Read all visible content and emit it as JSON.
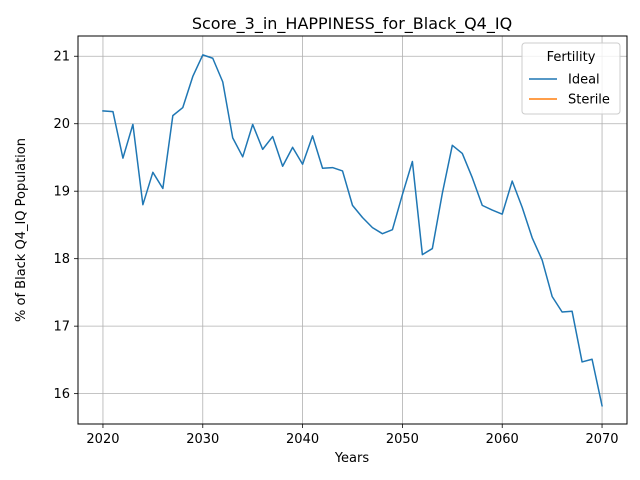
{
  "chart_data": {
    "type": "line",
    "title": "Score_3_in_HAPPINESS_for_Black_Q4_IQ",
    "xlabel": "Years",
    "ylabel": "% of Black Q4_IQ Population",
    "xlim": [
      2017.5,
      2072.5
    ],
    "ylim": [
      15.55,
      21.3
    ],
    "xticks": [
      2020,
      2030,
      2040,
      2050,
      2060,
      2070
    ],
    "yticks": [
      16,
      17,
      18,
      19,
      20,
      21
    ],
    "grid": true,
    "legend": {
      "title": "Fertility",
      "placement": "top-right",
      "entries": [
        "Ideal",
        "Sterile"
      ]
    },
    "series": [
      {
        "name": "Ideal",
        "color": "#1f77b4",
        "x": [
          2020,
          2021,
          2022,
          2023,
          2024,
          2025,
          2026,
          2027,
          2028,
          2029,
          2030,
          2031,
          2032,
          2033,
          2034,
          2035,
          2036,
          2037,
          2038,
          2039,
          2040,
          2041,
          2042,
          2043,
          2044,
          2045,
          2046,
          2047,
          2048,
          2049,
          2050,
          2051,
          2052,
          2053,
          2054,
          2055,
          2056,
          2057,
          2058,
          2059,
          2060,
          2061,
          2062,
          2063,
          2064,
          2065,
          2066,
          2067,
          2068,
          2069,
          2070
        ],
        "values": [
          20.19,
          20.18,
          19.49,
          19.99,
          18.8,
          19.28,
          19.04,
          20.12,
          20.24,
          20.7,
          21.02,
          20.97,
          20.62,
          19.79,
          19.51,
          19.99,
          19.62,
          19.81,
          19.37,
          19.65,
          19.4,
          19.82,
          19.34,
          19.35,
          19.3,
          18.79,
          18.61,
          18.46,
          18.37,
          18.43,
          18.95,
          19.44,
          18.06,
          18.15,
          18.97,
          19.68,
          19.56,
          19.2,
          18.79,
          18.72,
          18.66,
          19.15,
          18.76,
          18.31,
          17.98,
          17.44,
          17.21,
          17.22,
          16.47,
          16.51,
          15.82
        ]
      },
      {
        "name": "Sterile",
        "color": "#ff7f0e",
        "x": [],
        "values": []
      }
    ]
  }
}
